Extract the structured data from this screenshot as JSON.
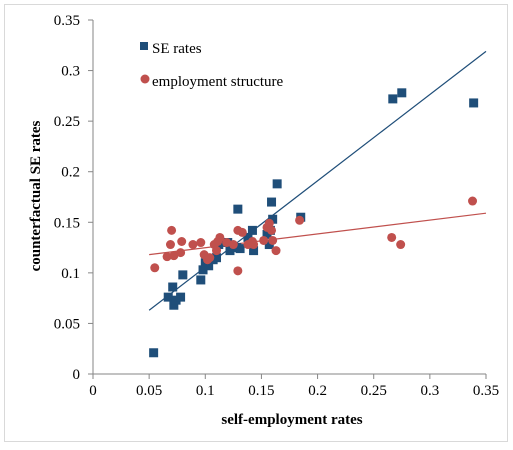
{
  "chart_data": {
    "type": "scatter",
    "xlabel": "self-employment rates",
    "ylabel": "counterfactual SE rates",
    "xlim": [
      0,
      0.35
    ],
    "ylim": [
      0,
      0.35
    ],
    "x_ticks": [
      "0",
      "0.05",
      "0.1",
      "0.15",
      "0.2",
      "0.25",
      "0.3",
      "0.35"
    ],
    "y_ticks": [
      "0",
      "0.05",
      "0.1",
      "0.15",
      "0.2",
      "0.25",
      "0.3",
      "0.35"
    ],
    "grid": false,
    "legend_position": "top-left",
    "series": [
      {
        "name": "SE rates",
        "marker": "square",
        "color": "#1f4e79",
        "points": [
          [
            0.054,
            0.021
          ],
          [
            0.067,
            0.076
          ],
          [
            0.071,
            0.086
          ],
          [
            0.072,
            0.068
          ],
          [
            0.074,
            0.073
          ],
          [
            0.078,
            0.076
          ],
          [
            0.08,
            0.098
          ],
          [
            0.096,
            0.093
          ],
          [
            0.098,
            0.103
          ],
          [
            0.1,
            0.11
          ],
          [
            0.103,
            0.107
          ],
          [
            0.107,
            0.113
          ],
          [
            0.11,
            0.115
          ],
          [
            0.112,
            0.128
          ],
          [
            0.12,
            0.13
          ],
          [
            0.122,
            0.122
          ],
          [
            0.128,
            0.125
          ],
          [
            0.129,
            0.163
          ],
          [
            0.131,
            0.124
          ],
          [
            0.138,
            0.135
          ],
          [
            0.142,
            0.142
          ],
          [
            0.143,
            0.122
          ],
          [
            0.155,
            0.138
          ],
          [
            0.157,
            0.128
          ],
          [
            0.158,
            0.142
          ],
          [
            0.159,
            0.17
          ],
          [
            0.16,
            0.153
          ],
          [
            0.164,
            0.188
          ],
          [
            0.185,
            0.155
          ],
          [
            0.267,
            0.272
          ],
          [
            0.275,
            0.278
          ],
          [
            0.339,
            0.268
          ]
        ]
      },
      {
        "name": "employment structure",
        "marker": "circle",
        "color": "#c0504d",
        "points": [
          [
            0.055,
            0.105
          ],
          [
            0.066,
            0.116
          ],
          [
            0.069,
            0.128
          ],
          [
            0.07,
            0.142
          ],
          [
            0.072,
            0.117
          ],
          [
            0.078,
            0.12
          ],
          [
            0.079,
            0.131
          ],
          [
            0.089,
            0.128
          ],
          [
            0.096,
            0.13
          ],
          [
            0.099,
            0.118
          ],
          [
            0.102,
            0.113
          ],
          [
            0.104,
            0.115
          ],
          [
            0.108,
            0.128
          ],
          [
            0.11,
            0.122
          ],
          [
            0.111,
            0.131
          ],
          [
            0.113,
            0.135
          ],
          [
            0.119,
            0.13
          ],
          [
            0.125,
            0.128
          ],
          [
            0.129,
            0.102
          ],
          [
            0.129,
            0.142
          ],
          [
            0.133,
            0.14
          ],
          [
            0.138,
            0.128
          ],
          [
            0.142,
            0.131
          ],
          [
            0.143,
            0.128
          ],
          [
            0.152,
            0.132
          ],
          [
            0.155,
            0.145
          ],
          [
            0.157,
            0.149
          ],
          [
            0.159,
            0.142
          ],
          [
            0.16,
            0.132
          ],
          [
            0.163,
            0.122
          ],
          [
            0.184,
            0.152
          ],
          [
            0.266,
            0.135
          ],
          [
            0.274,
            0.128
          ],
          [
            0.338,
            0.171
          ]
        ]
      }
    ],
    "trendlines": [
      {
        "series": "SE rates",
        "color": "#1f4e79",
        "points": [
          [
            0.05,
            0.063
          ],
          [
            0.35,
            0.319
          ]
        ]
      },
      {
        "series": "employment structure",
        "color": "#c0504d",
        "points": [
          [
            0.05,
            0.118
          ],
          [
            0.35,
            0.159
          ]
        ]
      }
    ]
  }
}
